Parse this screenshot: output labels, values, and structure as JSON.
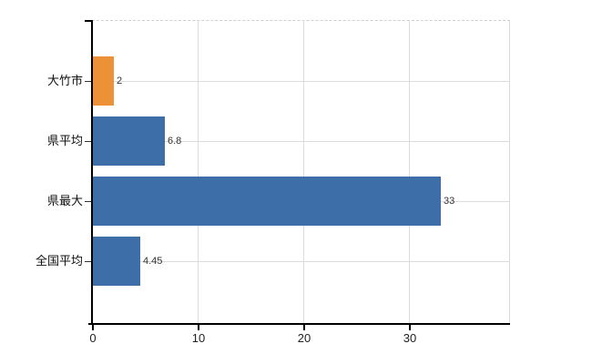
{
  "chart_data": {
    "type": "bar",
    "orientation": "horizontal",
    "title": "",
    "xlabel": "",
    "ylabel": "",
    "categories": [
      "大竹市",
      "県平均",
      "県最大",
      "全国平均"
    ],
    "values": [
      2,
      6.8,
      33,
      4.45
    ],
    "value_labels": [
      "2",
      "6.8",
      "33",
      "4.45"
    ],
    "bar_colors": [
      "#EC9138",
      "#3E6EA8",
      "#3E6EA8",
      "#3E6EA8"
    ],
    "x_ticks": [
      0,
      10,
      20,
      30
    ],
    "x_tick_labels": [
      "0",
      "10",
      "20",
      "30"
    ],
    "xlim": [
      0,
      39.6
    ],
    "grid": true,
    "legend": "none",
    "colors": {
      "highlight_bar": "#EC9138",
      "default_bar": "#3E6EA8",
      "grid": "#dcdcdc",
      "axis": "#000000",
      "text": "#333333"
    }
  }
}
